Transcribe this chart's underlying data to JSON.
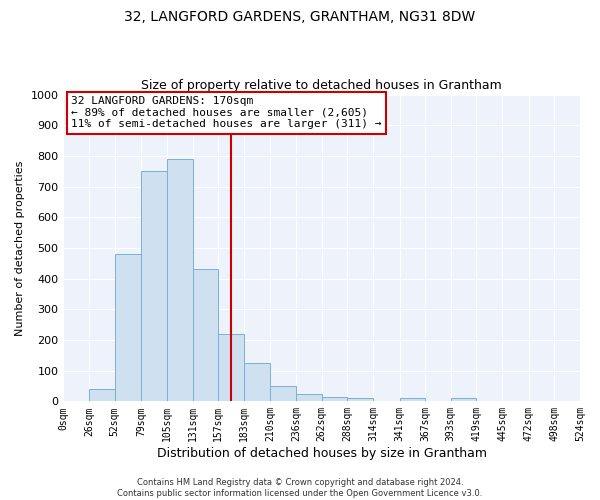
{
  "title": "32, LANGFORD GARDENS, GRANTHAM, NG31 8DW",
  "subtitle": "Size of property relative to detached houses in Grantham",
  "xlabel": "Distribution of detached houses by size in Grantham",
  "ylabel": "Number of detached properties",
  "bar_color": "#cfe0f0",
  "bar_edge_color": "#7ab0d5",
  "background_color": "#eef2fb",
  "grid_color": "#ffffff",
  "bin_edges": [
    0,
    26,
    52,
    79,
    105,
    131,
    157,
    183,
    210,
    236,
    262,
    288,
    314,
    341,
    367,
    393,
    419,
    445,
    472,
    498,
    524
  ],
  "bar_heights": [
    0,
    40,
    480,
    750,
    790,
    430,
    220,
    125,
    50,
    25,
    15,
    10,
    0,
    10,
    0,
    10,
    0,
    0,
    0,
    0
  ],
  "tick_labels": [
    "0sqm",
    "26sqm",
    "52sqm",
    "79sqm",
    "105sqm",
    "131sqm",
    "157sqm",
    "183sqm",
    "210sqm",
    "236sqm",
    "262sqm",
    "288sqm",
    "314sqm",
    "341sqm",
    "367sqm",
    "393sqm",
    "419sqm",
    "445sqm",
    "472sqm",
    "498sqm",
    "524sqm"
  ],
  "ylim": [
    0,
    1000
  ],
  "yticks": [
    0,
    100,
    200,
    300,
    400,
    500,
    600,
    700,
    800,
    900,
    1000
  ],
  "property_size": 170,
  "red_line_color": "#cc0000",
  "annotation_text": "32 LANGFORD GARDENS: 170sqm\n← 89% of detached houses are smaller (2,605)\n11% of semi-detached houses are larger (311) →",
  "annotation_box_color": "#ffffff",
  "annotation_border_color": "#cc0000",
  "footer_line1": "Contains HM Land Registry data © Crown copyright and database right 2024.",
  "footer_line2": "Contains public sector information licensed under the Open Government Licence v3.0.",
  "title_fontsize": 10,
  "subtitle_fontsize": 9
}
